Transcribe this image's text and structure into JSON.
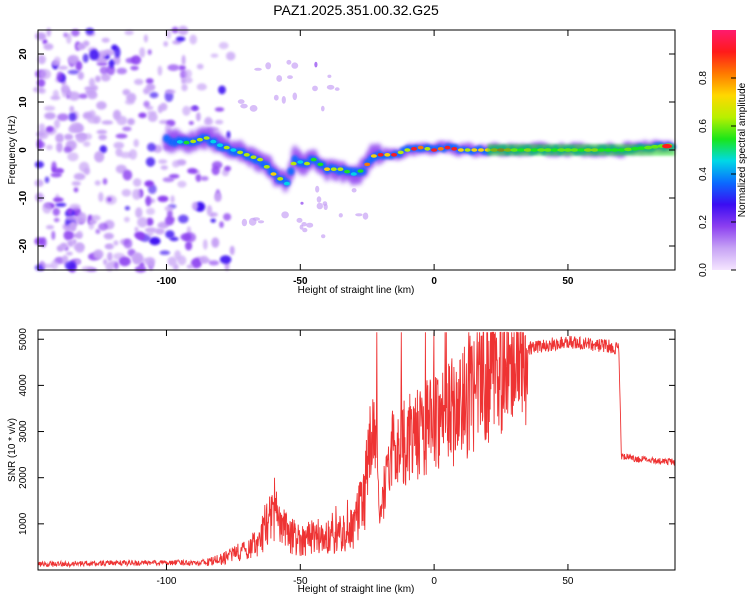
{
  "title": "PAZ1.2025.351.00.32.G25",
  "chart_data": [
    {
      "type": "heatmap",
      "name": "spectrogram",
      "xlabel": "Height of straight line (km)",
      "ylabel": "Frequency (Hz)",
      "xlim": [
        -148,
        90
      ],
      "ylim": [
        -25,
        25
      ],
      "x_ticks": [
        -100,
        -50,
        0,
        50
      ],
      "y_ticks": [
        -20,
        -10,
        0,
        10,
        20
      ],
      "ridge": {
        "x": [
          -100,
          -92,
          -85,
          -80,
          -75,
          -70,
          -65,
          -60,
          -55,
          -52,
          -48,
          -45,
          -40,
          -35,
          -30,
          -26,
          -24,
          -22,
          -20,
          -15,
          -10,
          -5,
          0,
          5,
          10,
          20,
          30,
          40,
          50,
          60,
          70,
          80,
          88
        ],
        "y": [
          2,
          1.5,
          2.5,
          1,
          0,
          -1,
          -2,
          -5,
          -7,
          -2,
          -3,
          -2,
          -4,
          -4,
          -5,
          -4,
          -2,
          -1,
          -1,
          -1,
          0,
          0.5,
          0,
          0.5,
          0,
          0,
          0,
          0,
          0,
          0,
          0,
          0.5,
          1
        ]
      },
      "colorbar": {
        "label": "Normalized spectral amplitude",
        "range": [
          0,
          1
        ],
        "ticks": [
          "0.0",
          "0.2",
          "0.4",
          "0.6",
          "0.8"
        ],
        "colors": [
          "#f5e6ff",
          "#c7a3f5",
          "#8c3ff0",
          "#3b0df2",
          "#0a6bff",
          "#00d9e6",
          "#1ae61a",
          "#b8f000",
          "#ffd800",
          "#ff7a00",
          "#ff1a1a",
          "#ff1a6e"
        ]
      }
    },
    {
      "type": "line",
      "name": "snr",
      "xlabel": "Height of straight line (km)",
      "ylabel": "SNR (10 * v/v)",
      "xlim": [
        -148,
        90
      ],
      "ylim": [
        0,
        5200
      ],
      "x_ticks": [
        -100,
        -50,
        0,
        50
      ],
      "y_ticks": [
        1000,
        2000,
        3000,
        4000,
        5000
      ],
      "color": "#ee3333",
      "series": [
        {
          "name": "SNR",
          "x": [
            -148,
            -140,
            -130,
            -120,
            -110,
            -100,
            -90,
            -85,
            -80,
            -75,
            -70,
            -65,
            -62,
            -60,
            -58,
            -55,
            -50,
            -45,
            -40,
            -35,
            -30,
            -26,
            -24,
            -22,
            -20,
            -18,
            -15,
            -10,
            -5,
            0,
            5,
            10,
            15,
            20,
            25,
            30,
            35,
            40,
            45,
            50,
            55,
            60,
            65,
            69,
            70,
            72,
            75,
            80,
            85,
            90
          ],
          "y": [
            120,
            130,
            140,
            150,
            150,
            160,
            160,
            170,
            220,
            350,
            450,
            650,
            1100,
            1400,
            1000,
            800,
            650,
            750,
            700,
            800,
            900,
            1600,
            2700,
            2900,
            1200,
            2000,
            2700,
            2800,
            3000,
            3300,
            3400,
            3500,
            3900,
            4200,
            4500,
            4700,
            4800,
            4850,
            4900,
            4950,
            4900,
            4880,
            4850,
            4800,
            2450,
            2450,
            2400,
            2400,
            2350,
            2350
          ]
        }
      ]
    }
  ]
}
